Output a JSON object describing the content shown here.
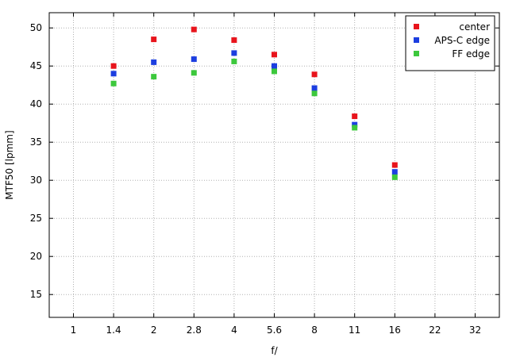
{
  "chart_data": {
    "type": "scatter",
    "xlabel": "f/",
    "ylabel": "MTF50 [lpmm]",
    "x_categories": [
      "1",
      "1.4",
      "2",
      "2.8",
      "4",
      "5.6",
      "8",
      "11",
      "16",
      "22",
      "32"
    ],
    "ylim": [
      12,
      52
    ],
    "yticks": [
      15,
      20,
      25,
      30,
      35,
      40,
      45,
      50
    ],
    "grid": true,
    "legend_position": "top-right",
    "series": [
      {
        "name": "center",
        "color": "#e8141c",
        "points": [
          {
            "x": "1.4",
            "y": 45.0
          },
          {
            "x": "2",
            "y": 48.5
          },
          {
            "x": "2.8",
            "y": 49.8
          },
          {
            "x": "4",
            "y": 48.4
          },
          {
            "x": "5.6",
            "y": 46.5
          },
          {
            "x": "8",
            "y": 43.9
          },
          {
            "x": "11",
            "y": 38.4
          },
          {
            "x": "16",
            "y": 32.0
          }
        ]
      },
      {
        "name": "APS-C edge",
        "color": "#1c3ee0",
        "points": [
          {
            "x": "1.4",
            "y": 44.0
          },
          {
            "x": "2",
            "y": 45.5
          },
          {
            "x": "2.8",
            "y": 45.9
          },
          {
            "x": "4",
            "y": 46.7
          },
          {
            "x": "5.6",
            "y": 45.0
          },
          {
            "x": "8",
            "y": 42.1
          },
          {
            "x": "11",
            "y": 37.3
          },
          {
            "x": "16",
            "y": 31.1
          }
        ]
      },
      {
        "name": "FF edge",
        "color": "#3cc83c",
        "points": [
          {
            "x": "1.4",
            "y": 42.7
          },
          {
            "x": "2",
            "y": 43.6
          },
          {
            "x": "2.8",
            "y": 44.1
          },
          {
            "x": "4",
            "y": 45.6
          },
          {
            "x": "5.6",
            "y": 44.3
          },
          {
            "x": "8",
            "y": 41.4
          },
          {
            "x": "11",
            "y": 36.9
          },
          {
            "x": "16",
            "y": 30.4
          }
        ]
      }
    ]
  }
}
